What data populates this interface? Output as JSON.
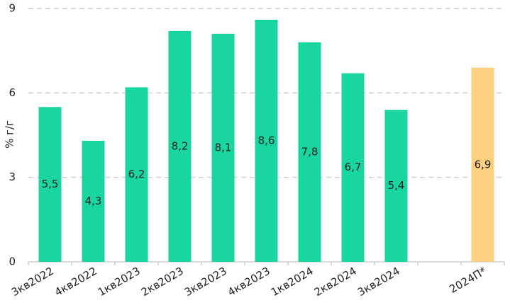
{
  "chart_data": {
    "type": "bar",
    "y_label": "% г/г",
    "categories": [
      "3кв2022",
      "4кв2022",
      "1кв2023",
      "2кв2023",
      "3кв2023",
      "4кв2023",
      "1кв2024",
      "2кв2024",
      "3кв2024",
      null,
      "2024П*"
    ],
    "values": [
      5.5,
      4.3,
      6.2,
      8.2,
      8.1,
      8.6,
      7.8,
      6.7,
      5.4,
      null,
      6.9
    ],
    "value_labels": [
      "5,5",
      "4,3",
      "6,2",
      "8,2",
      "8,1",
      "8,6",
      "7,8",
      "6,7",
      "5,4",
      null,
      "6,9"
    ],
    "colors": [
      "#19d6a0",
      "#19d6a0",
      "#19d6a0",
      "#19d6a0",
      "#19d6a0",
      "#19d6a0",
      "#19d6a0",
      "#19d6a0",
      "#19d6a0",
      null,
      "#fcd07f"
    ],
    "ylim": [
      0,
      9
    ],
    "yticks": [
      0,
      3,
      6,
      9
    ],
    "grid": true
  }
}
